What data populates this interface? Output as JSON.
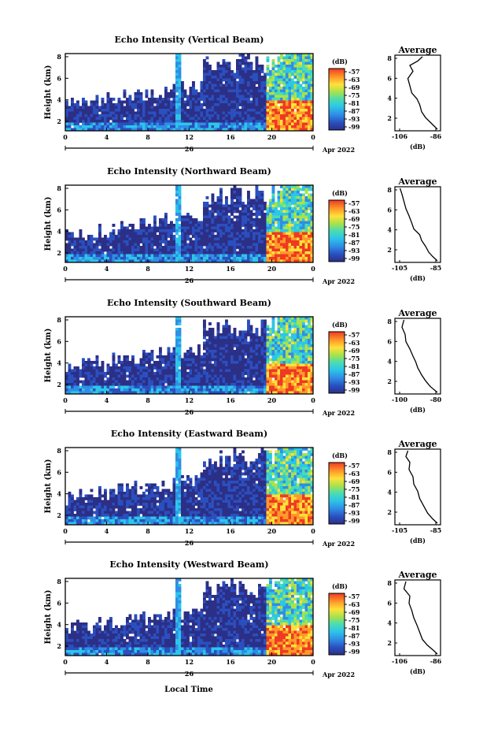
{
  "figure": {
    "xlabel": "Local Time",
    "date_label": "Apr 2022"
  },
  "chart_data": [
    {
      "type": "heatmap",
      "title": "Echo Intensity (Vertical Beam)",
      "ylabel": "Height (km)",
      "x_ticks": [
        "0",
        "4",
        "8",
        "12",
        "16",
        "20",
        "0"
      ],
      "date_tick": "26",
      "y_ticks": [
        "2",
        "4",
        "6",
        "8"
      ],
      "colorbar_label": "(dB)",
      "colorbar_ticks": [
        "-57",
        "-63",
        "-69",
        "-75",
        "-81",
        "-87",
        "-93",
        "-99"
      ],
      "average": {
        "title": "Average",
        "xlabel": "(dB)",
        "x_ticks": [
          "-106",
          "-86"
        ],
        "y_ticks": [
          "2",
          "4",
          "6",
          "8"
        ]
      }
    },
    {
      "type": "heatmap",
      "title": "Echo Intensity (Northward Beam)",
      "ylabel": "Height (km)",
      "x_ticks": [
        "0",
        "4",
        "8",
        "12",
        "16",
        "20",
        "0"
      ],
      "date_tick": "26",
      "y_ticks": [
        "2",
        "4",
        "6",
        "8"
      ],
      "colorbar_label": "(dB)",
      "colorbar_ticks": [
        "-57",
        "-63",
        "-69",
        "-75",
        "-81",
        "-87",
        "-93",
        "-99"
      ],
      "average": {
        "title": "Average",
        "xlabel": "(dB)",
        "x_ticks": [
          "-105",
          "-85"
        ],
        "y_ticks": [
          "2",
          "4",
          "6",
          "8"
        ]
      }
    },
    {
      "type": "heatmap",
      "title": "Echo Intensity (Southward Beam)",
      "ylabel": "Height (km)",
      "x_ticks": [
        "0",
        "4",
        "8",
        "12",
        "16",
        "20",
        "0"
      ],
      "date_tick": "26",
      "y_ticks": [
        "2",
        "4",
        "6",
        "8"
      ],
      "colorbar_label": "(dB)",
      "colorbar_ticks": [
        "-57",
        "-63",
        "-69",
        "-75",
        "-81",
        "-87",
        "-93",
        "-99"
      ],
      "average": {
        "title": "Average",
        "xlabel": "(dB)",
        "x_ticks": [
          "-100",
          "-80"
        ],
        "y_ticks": [
          "2",
          "4",
          "6",
          "8"
        ]
      }
    },
    {
      "type": "heatmap",
      "title": "Echo Intensity (Eastward Beam)",
      "ylabel": "Height (km)",
      "x_ticks": [
        "0",
        "4",
        "8",
        "12",
        "16",
        "20",
        "0"
      ],
      "date_tick": "26",
      "y_ticks": [
        "2",
        "4",
        "6",
        "8"
      ],
      "colorbar_label": "(dB)",
      "colorbar_ticks": [
        "-57",
        "-63",
        "-69",
        "-75",
        "-81",
        "-87",
        "-93",
        "-99"
      ],
      "average": {
        "title": "Average",
        "xlabel": "(dB)",
        "x_ticks": [
          "-105",
          "-85"
        ],
        "y_ticks": [
          "2",
          "4",
          "6",
          "8"
        ]
      }
    },
    {
      "type": "heatmap",
      "title": "Echo Intensity (Westward Beam)",
      "ylabel": "Height (km)",
      "x_ticks": [
        "0",
        "4",
        "8",
        "12",
        "16",
        "20",
        "0"
      ],
      "date_tick": "26",
      "y_ticks": [
        "2",
        "4",
        "6",
        "8"
      ],
      "colorbar_label": "(dB)",
      "colorbar_ticks": [
        "-57",
        "-63",
        "-69",
        "-75",
        "-81",
        "-87",
        "-93",
        "-99"
      ],
      "average": {
        "title": "Average",
        "xlabel": "(dB)",
        "x_ticks": [
          "-106",
          "-86"
        ],
        "y_ticks": [
          "2",
          "4",
          "6",
          "8"
        ]
      }
    }
  ]
}
